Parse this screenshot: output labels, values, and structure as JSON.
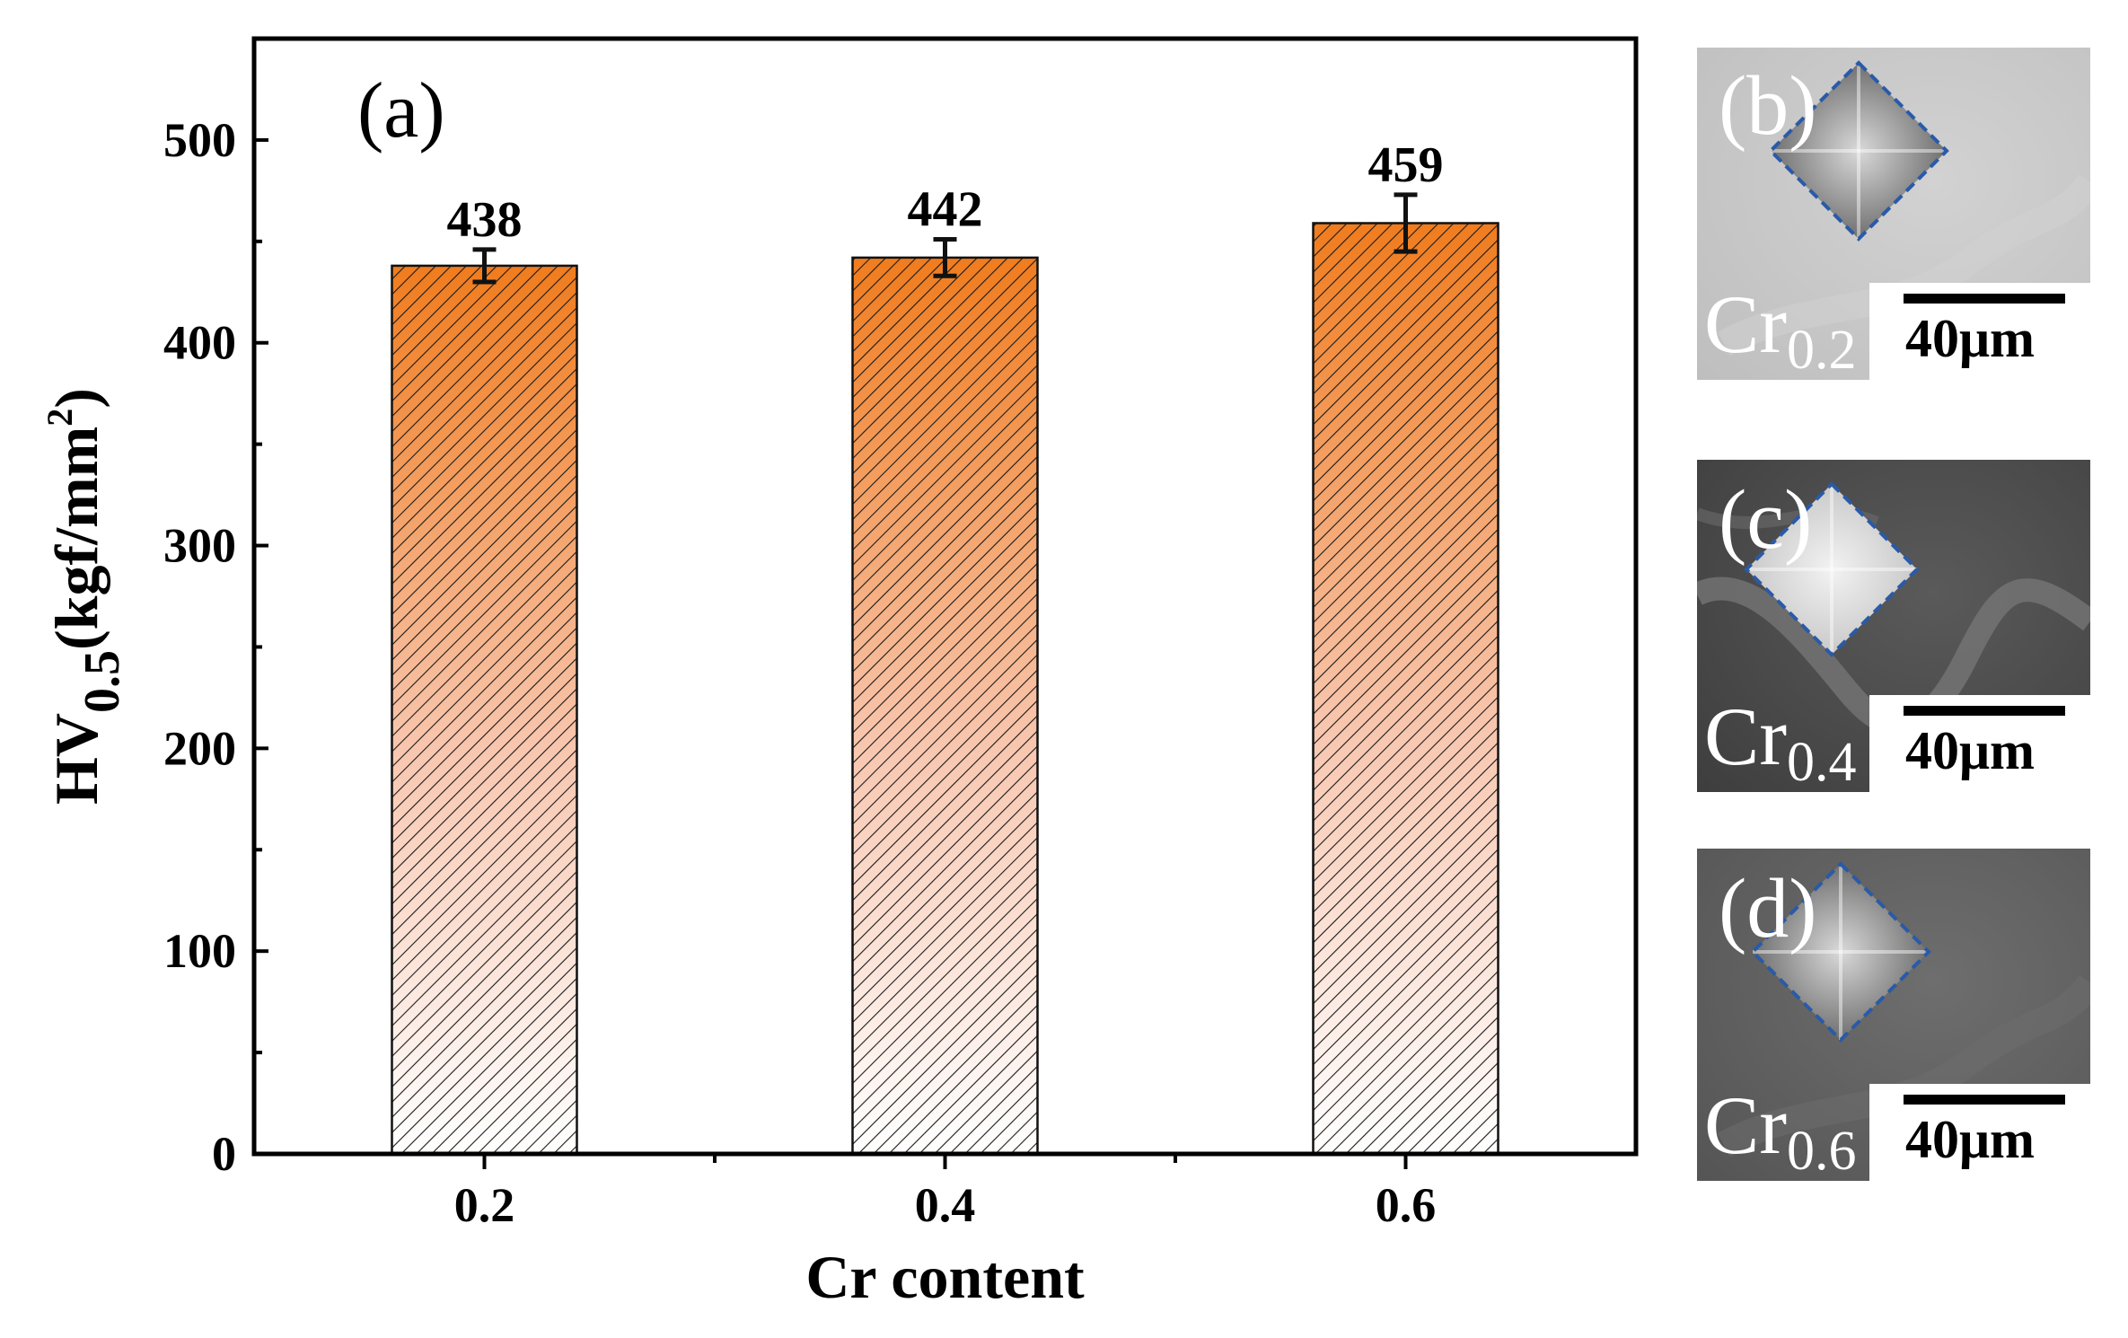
{
  "chart_data": {
    "type": "bar",
    "panel_label": "(a)",
    "categories": [
      "0.2",
      "0.4",
      "0.6"
    ],
    "values": [
      438,
      442,
      459
    ],
    "errors": [
      8,
      9,
      14
    ],
    "data_labels": [
      "438",
      "442",
      "459"
    ],
    "xlabel": "Cr content",
    "ylabel_main": "HV",
    "ylabel_sub": "0.5",
    "ylabel_unit": "(kgf/mm",
    "ylabel_sup": "2",
    "ylabel_close": ")",
    "ylim": [
      0,
      550
    ],
    "yticks": [
      0,
      100,
      200,
      300,
      400,
      500
    ],
    "grid": false,
    "legend": "none",
    "bar_fill": "hatched, gradient from orange at top to white at bottom",
    "colors": {
      "bar_top": "#f07c1e",
      "bar_bottom": "#ffffff",
      "hatch": "#1a1a1a",
      "indent_outline": "#2a5aa8"
    }
  },
  "micrographs": [
    {
      "letter": "(b)",
      "sample_base": "Cr",
      "sample_sub": "0.2",
      "scale": "40μm",
      "tone": "light"
    },
    {
      "letter": "(c)",
      "sample_base": "Cr",
      "sample_sub": "0.4",
      "scale": "40μm",
      "tone": "dark"
    },
    {
      "letter": "(d)",
      "sample_base": "Cr",
      "sample_sub": "0.6",
      "scale": "40μm",
      "tone": "medium"
    }
  ]
}
